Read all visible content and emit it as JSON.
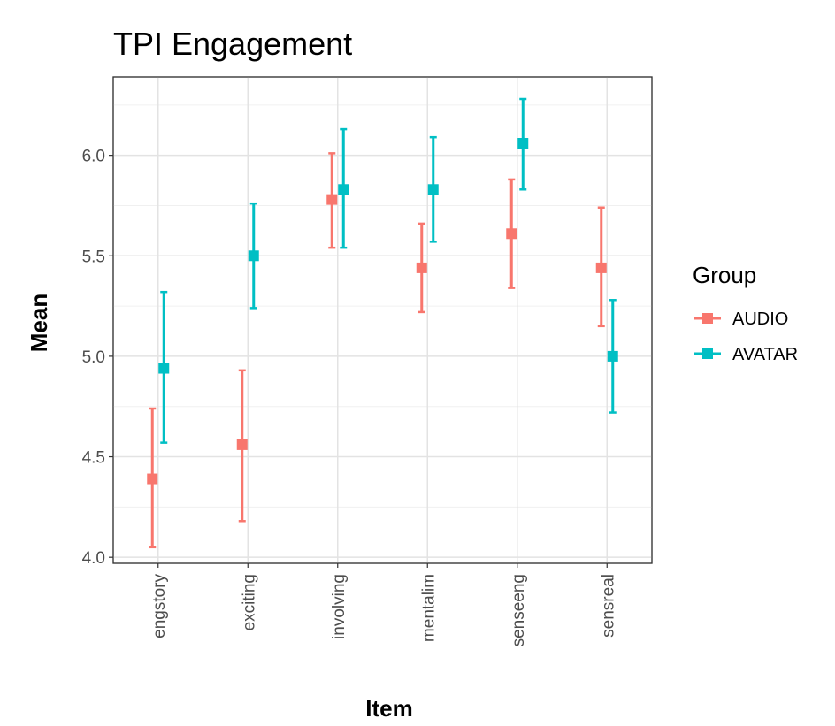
{
  "chart_data": {
    "type": "scatter",
    "title": "TPI Engagement",
    "xlabel": "Item",
    "ylabel": "Mean",
    "categories": [
      "engstory",
      "exciting",
      "involving",
      "mentalim",
      "senseeng",
      "sensreal"
    ],
    "ylim": [
      3.97,
      6.39
    ],
    "yticks": [
      "4.0",
      "4.5",
      "5.0",
      "5.5",
      "6.0"
    ],
    "grid": true,
    "legend": {
      "title": "Group",
      "position": "right"
    },
    "series": [
      {
        "name": "AUDIO",
        "color": "#F8766D",
        "values": [
          4.39,
          4.56,
          5.78,
          5.44,
          5.61,
          5.44
        ],
        "lower": [
          4.05,
          4.18,
          5.54,
          5.22,
          5.34,
          5.15
        ],
        "upper": [
          4.74,
          4.93,
          6.01,
          5.66,
          5.88,
          5.74
        ]
      },
      {
        "name": "AVATAR",
        "color": "#00BFC4",
        "values": [
          4.94,
          5.5,
          5.83,
          5.83,
          6.06,
          5.0
        ],
        "lower": [
          4.57,
          5.24,
          5.54,
          5.57,
          5.83,
          4.72
        ],
        "upper": [
          5.32,
          5.76,
          6.13,
          6.09,
          6.28,
          5.28
        ]
      }
    ]
  }
}
